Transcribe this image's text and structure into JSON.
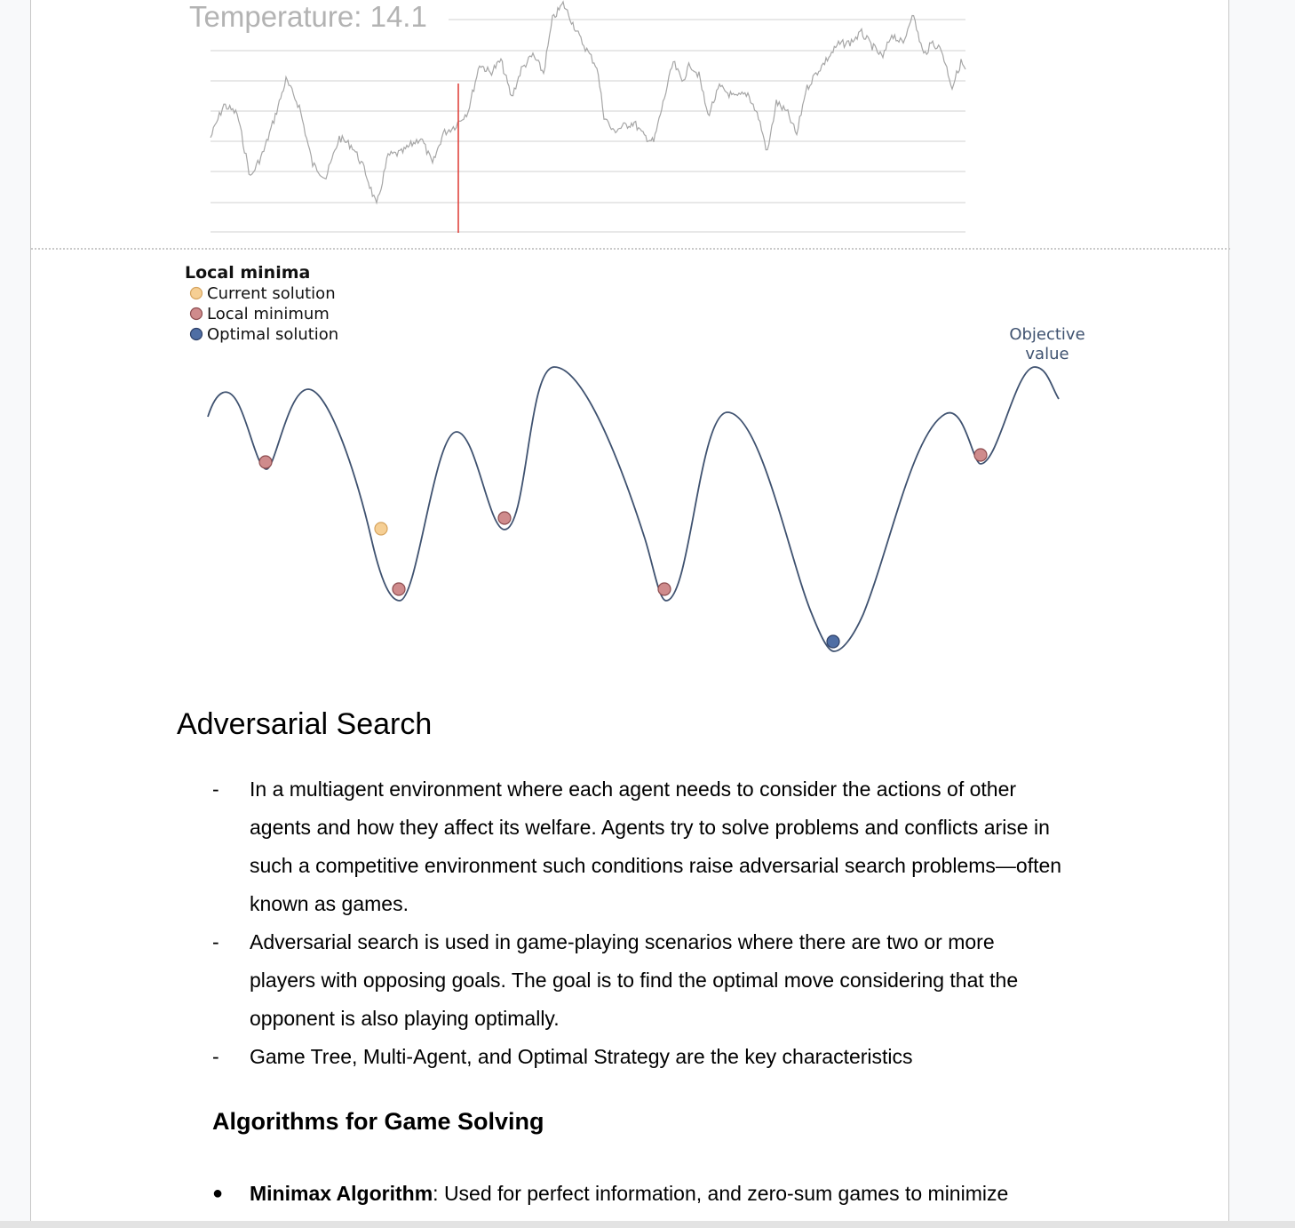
{
  "temperature_chart": {
    "label": "Temperature: 14.1",
    "colors": {
      "line": "#a6a6a6",
      "grid": "#d9d9d9",
      "marker": "#e0443e",
      "label": "#b3b3b3"
    }
  },
  "chart_data": {
    "type": "line",
    "title": "Local minima",
    "legend": [
      {
        "label": "Current solution",
        "color": "#f6cf94"
      },
      {
        "label": "Local minimum",
        "color": "#cf8b8c"
      },
      {
        "label": "Optimal solution",
        "color": "#4f6ea4"
      }
    ],
    "axis_label": "Objective value",
    "legend_position": "top-left",
    "colors": {
      "curve": "#3f5270",
      "label": "#3f5270"
    }
  },
  "document": {
    "heading": "Adversarial Search",
    "list_marker": "-",
    "items": [
      "In a multiagent environment where each agent needs to consider the actions of other agents and how they affect its welfare. Agents try to solve problems and conflicts arise in such a competitive environment such conditions raise adversarial search problems—often known as games.",
      "Adversarial search is used in game-playing scenarios where there are two or more players with opposing goals. The goal is to find the optimal move considering that the opponent is also playing optimally.",
      "Game Tree, Multi-Agent, and Optimal Strategy are the key characteristics"
    ],
    "subheading": "Algorithms for Game Solving",
    "bullet_marker": "●",
    "bullets": [
      {
        "term": "Minimax Algorithm",
        "text": ": Used for perfect information, and zero-sum games to minimize"
      }
    ]
  }
}
